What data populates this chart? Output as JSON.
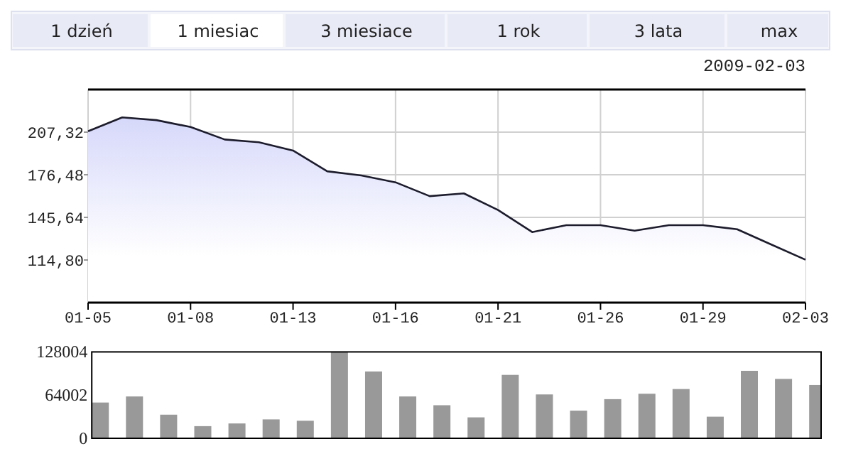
{
  "chart_data": [
    {
      "type": "other",
      "annotations": [
        "1 dzień",
        "1 miesiac",
        "3 miesiace",
        "1 rok",
        "3 lata",
        "max"
      ]
    },
    {
      "type": "area",
      "title": "2009-02-03",
      "categories": [
        "01-05",
        null,
        null,
        "01-08",
        null,
        null,
        "01-13",
        null,
        null,
        "01-16",
        null,
        null,
        "01-21",
        null,
        null,
        "01-26",
        null,
        null,
        "01-29",
        null,
        null,
        "02-03"
      ],
      "series": [
        {
          "color": "#1c1c2c",
          "values": [
            208,
            218,
            216,
            211,
            202,
            200,
            194,
            179,
            176,
            171,
            161,
            163,
            151,
            135,
            140,
            140,
            136,
            140,
            140,
            137,
            126,
            115
          ]
        }
      ],
      "ylim": [
        83.96,
        238.16
      ],
      "yticks": [
        {
          "value": 114.8,
          "label": "114,80"
        },
        {
          "value": 145.64,
          "label": "145,64"
        },
        {
          "value": 176.48,
          "label": "176,48"
        },
        {
          "value": 207.32,
          "label": "207,32"
        }
      ],
      "grid": true
    },
    {
      "type": "bar",
      "categories": [
        null,
        null,
        null,
        null,
        null,
        null,
        null,
        null,
        null,
        null,
        null,
        null,
        null,
        null,
        null,
        null,
        null,
        null,
        null,
        null,
        null,
        null
      ],
      "series": [
        {
          "color": "#999999",
          "values": [
            53000,
            62000,
            35000,
            18000,
            22000,
            28000,
            26000,
            128000,
            99000,
            62000,
            49000,
            31000,
            94000,
            65000,
            41000,
            58000,
            66000,
            73000,
            32000,
            100000,
            88000,
            79000
          ]
        }
      ],
      "ylim": [
        0,
        128004
      ],
      "yticks": [
        0,
        64002,
        128004
      ],
      "grid": false
    }
  ]
}
